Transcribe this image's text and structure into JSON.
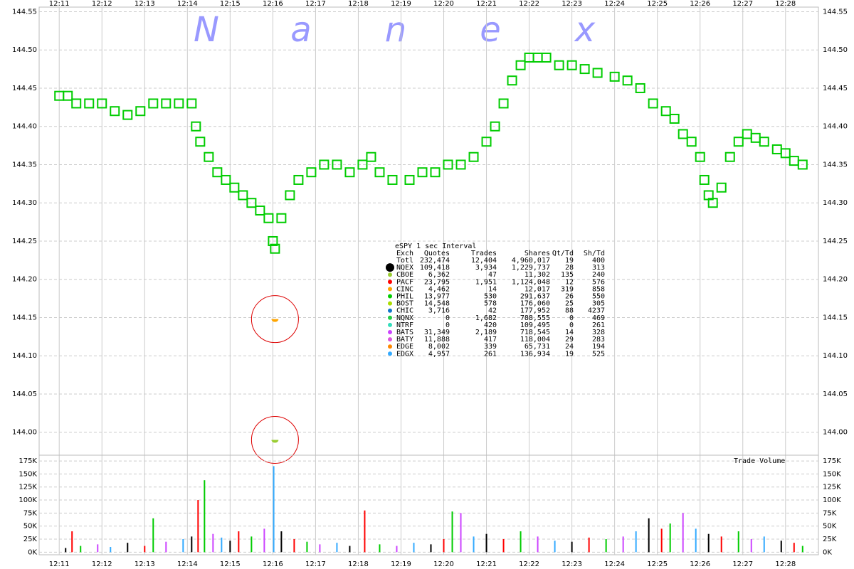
{
  "watermark": [
    "N",
    "a",
    "n",
    "e",
    "x"
  ],
  "chart_data": [
    {
      "type": "scatter",
      "xlim": [
        10.53,
        28.77
      ],
      "ylim": [
        143.97,
        144.556
      ],
      "xticks": [
        {
          "value": 11,
          "label": "12:11"
        },
        {
          "value": 12,
          "label": "12:12"
        },
        {
          "value": 13,
          "label": "12:13"
        },
        {
          "value": 14,
          "label": "12:14"
        },
        {
          "value": 15,
          "label": "12:15"
        },
        {
          "value": 16,
          "label": "12:16"
        },
        {
          "value": 17,
          "label": "12:17"
        },
        {
          "value": 18,
          "label": "12:18"
        },
        {
          "value": 19,
          "label": "12:19"
        },
        {
          "value": 20,
          "label": "12:20"
        },
        {
          "value": 21,
          "label": "12:21"
        },
        {
          "value": 22,
          "label": "12:22"
        },
        {
          "value": 23,
          "label": "12:23"
        },
        {
          "value": 24,
          "label": "12:24"
        },
        {
          "value": 25,
          "label": "12:25"
        },
        {
          "value": 26,
          "label": "12:26"
        },
        {
          "value": 27,
          "label": "12:27"
        },
        {
          "value": 28,
          "label": "12:28"
        }
      ],
      "yticks": [
        {
          "value": 144.0,
          "label": "144.00"
        },
        144.05,
        {
          "value": 144.1,
          "label": "144.10"
        },
        144.15,
        {
          "value": 144.2,
          "label": "144.20"
        },
        144.25,
        {
          "value": 144.3,
          "label": "144.30"
        },
        144.35,
        {
          "value": 144.4,
          "label": "144.40"
        },
        144.45,
        {
          "value": 144.5,
          "label": "144.50"
        },
        144.55
      ],
      "grid": true,
      "series": [
        {
          "color": "#00cc00",
          "marker": "square",
          "x": [
            11.0,
            11.2,
            11.4,
            11.7,
            12.0,
            12.3,
            12.6,
            12.9,
            13.2,
            13.5,
            13.8,
            14.1,
            14.2,
            14.3,
            14.5,
            14.7,
            14.9,
            15.1,
            15.3,
            15.5,
            15.7,
            15.9,
            16.0,
            16.05,
            16.2,
            16.4,
            16.6,
            16.9,
            17.2,
            17.5,
            17.8,
            18.1,
            18.3,
            18.5,
            18.8,
            19.2,
            19.5,
            19.8,
            20.1,
            20.4,
            20.7,
            21.0,
            21.2,
            21.4,
            21.6,
            21.8,
            22.0,
            22.2,
            22.4,
            22.7,
            23.0,
            23.3,
            23.6,
            24.0,
            24.3,
            24.6,
            24.9,
            25.2,
            25.4,
            25.6,
            25.8,
            26.0,
            26.1,
            26.2,
            26.3,
            26.5,
            26.7,
            26.9,
            27.1,
            27.3,
            27.5,
            27.8,
            28.0,
            28.2,
            28.4
          ],
          "values": [
            144.44,
            144.44,
            144.43,
            144.43,
            144.43,
            144.42,
            144.415,
            144.42,
            144.43,
            144.43,
            144.43,
            144.43,
            144.4,
            144.38,
            144.36,
            144.34,
            144.33,
            144.32,
            144.31,
            144.3,
            144.29,
            144.28,
            144.25,
            144.24,
            144.28,
            144.31,
            144.33,
            144.34,
            144.35,
            144.35,
            144.34,
            144.35,
            144.36,
            144.34,
            144.33,
            144.33,
            144.34,
            144.34,
            144.35,
            144.35,
            144.36,
            144.38,
            144.4,
            144.43,
            144.46,
            144.48,
            144.49,
            144.49,
            144.49,
            144.48,
            144.48,
            144.475,
            144.47,
            144.465,
            144.46,
            144.45,
            144.43,
            144.42,
            144.41,
            144.39,
            144.38,
            144.36,
            144.33,
            144.31,
            144.3,
            144.32,
            144.36,
            144.38,
            144.39,
            144.385,
            144.38,
            144.37,
            144.365,
            144.355,
            144.35
          ]
        },
        {
          "color": "#ffa500",
          "marker": "half-circle",
          "circled": true,
          "x": [
            16.05
          ],
          "values": [
            144.148
          ]
        },
        {
          "color": "#9acd32",
          "marker": "half-circle",
          "circled": true,
          "x": [
            16.05
          ],
          "values": [
            143.99
          ]
        }
      ]
    },
    {
      "type": "bar",
      "title": "Trade Volume",
      "xlim": [
        10.53,
        28.77
      ],
      "ylim": [
        -5000,
        186000
      ],
      "yticks": [
        {
          "value": 0,
          "label": "0K"
        },
        {
          "value": 25000,
          "label": "25K"
        },
        {
          "value": 50000,
          "label": "50K"
        },
        {
          "value": 75000,
          "label": "75K"
        },
        {
          "value": 100000,
          "label": "100K"
        },
        {
          "value": 125000,
          "label": "125K"
        },
        {
          "value": 150000,
          "label": "150K"
        },
        {
          "value": 175000,
          "label": "175K"
        }
      ],
      "palette": [
        "#000000",
        "#ff0000",
        "#00cc00",
        "#cc44ff",
        "#33aaff"
      ],
      "x": [
        11.15,
        11.3,
        11.5,
        11.9,
        12.2,
        12.6,
        13.0,
        13.2,
        13.5,
        13.9,
        14.1,
        14.25,
        14.4,
        14.6,
        14.8,
        15.0,
        15.2,
        15.5,
        15.8,
        16.02,
        16.2,
        16.5,
        16.8,
        17.1,
        17.5,
        17.8,
        18.15,
        18.5,
        18.9,
        19.3,
        19.7,
        20.0,
        20.2,
        20.4,
        20.7,
        21.0,
        21.4,
        21.8,
        22.2,
        22.6,
        23.0,
        23.4,
        23.8,
        24.2,
        24.5,
        24.8,
        25.1,
        25.3,
        25.6,
        25.9,
        26.2,
        26.5,
        26.9,
        27.2,
        27.5,
        27.9,
        28.2,
        28.4
      ],
      "values": [
        8000,
        40000,
        12000,
        15000,
        10000,
        18000,
        12000,
        65000,
        20000,
        25000,
        30000,
        100000,
        138000,
        35000,
        28000,
        22000,
        40000,
        30000,
        45000,
        165000,
        40000,
        25000,
        20000,
        15000,
        18000,
        12000,
        80000,
        15000,
        12000,
        18000,
        15000,
        25000,
        78000,
        75000,
        30000,
        35000,
        25000,
        40000,
        30000,
        22000,
        20000,
        28000,
        25000,
        30000,
        40000,
        65000,
        45000,
        55000,
        75000,
        45000,
        35000,
        30000,
        40000,
        25000,
        30000,
        22000,
        18000,
        12000
      ]
    }
  ],
  "stats_table": {
    "title": "eSPY 1 sec Interval",
    "header": [
      "Exch",
      "Quotes",
      "Trades",
      "Shares",
      "Qt/Td",
      "Sh/Td"
    ],
    "row_colors": [
      null,
      "#000000",
      "#9acd32",
      "#ff0000",
      "#ffa500",
      "#00cc00",
      "#aadd00",
      "#1177cc",
      "#22cc44",
      "#33ddbb",
      "#cc44ff",
      "#dd55dd",
      "#ff8800",
      "#33aaff"
    ],
    "rows": [
      [
        "Totl",
        "232,474",
        "12,404",
        "4,960,017",
        "19",
        "400"
      ],
      [
        "NQEX",
        "109,418",
        "3,934",
        "1,229,737",
        "28",
        "313"
      ],
      [
        "CBOE",
        "6,362",
        "47",
        "11,302",
        "135",
        "240"
      ],
      [
        "PACF",
        "23,795",
        "1,951",
        "1,124,048",
        "12",
        "576"
      ],
      [
        "CINC",
        "4,462",
        "14",
        "12,017",
        "319",
        "858"
      ],
      [
        "PHIL",
        "13,977",
        "530",
        "291,637",
        "26",
        "550"
      ],
      [
        "BOST",
        "14,548",
        "578",
        "176,060",
        "25",
        "305"
      ],
      [
        "CHIC",
        "3,716",
        "42",
        "177,952",
        "88",
        "4237"
      ],
      [
        "NQNX",
        "0",
        "1,682",
        "788,555",
        "0",
        "469"
      ],
      [
        "NTRF",
        "0",
        "420",
        "109,495",
        "0",
        "261"
      ],
      [
        "BATS",
        "31,349",
        "2,189",
        "718,545",
        "14",
        "328"
      ],
      [
        "BATY",
        "11,888",
        "417",
        "118,004",
        "29",
        "283"
      ],
      [
        "EDGE",
        "8,002",
        "339",
        "65,731",
        "24",
        "194"
      ],
      [
        "EDGX",
        "4,957",
        "261",
        "136,934",
        "19",
        "525"
      ]
    ]
  }
}
